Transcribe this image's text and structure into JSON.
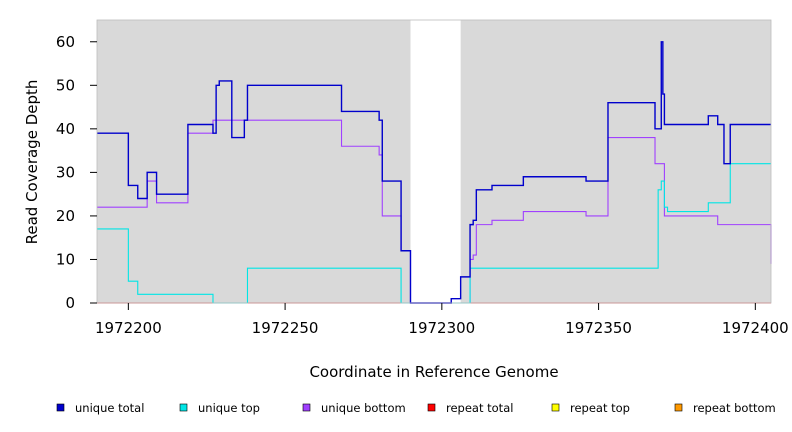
{
  "chart_data": {
    "type": "line",
    "line_shape": "step",
    "xlabel": "Coordinate in Reference Genome",
    "ylabel": "Read Coverage Depth",
    "xlim": [
      1972190,
      1972405
    ],
    "ylim": [
      0,
      65
    ],
    "x_ticks": [
      1972200,
      1972250,
      1972300,
      1972350,
      1972400
    ],
    "y_ticks": [
      0,
      10,
      20,
      30,
      40,
      50,
      60
    ],
    "plot_background": "#d9d9d9",
    "grid": false,
    "legend_position": "bottom",
    "highlight_region": {
      "x_start": 1972290,
      "x_end": 1972306,
      "color": "#ffffff"
    },
    "series": [
      {
        "name": "unique total",
        "color": "#0000cc",
        "x": [
          1972190,
          1972200,
          1972203,
          1972206,
          1972209,
          1972219,
          1972227,
          1972228,
          1972229,
          1972233,
          1972237,
          1972238,
          1972268,
          1972280,
          1972281,
          1972287,
          1972290,
          1972293,
          1972303,
          1972306,
          1972309,
          1972310,
          1972311,
          1972316,
          1972326,
          1972346,
          1972353,
          1972368,
          1972370,
          1972370.5,
          1972371,
          1972372,
          1972385,
          1972388,
          1972390,
          1972392,
          1972405
        ],
        "y": [
          39,
          27,
          24,
          30,
          25,
          41,
          39,
          50,
          51,
          38,
          42,
          50,
          44,
          42,
          28,
          12,
          0,
          0,
          1,
          6,
          18,
          19,
          26,
          27,
          29,
          28,
          46,
          40,
          60,
          48,
          41,
          41,
          43,
          41,
          32,
          41,
          41
        ]
      },
      {
        "name": "unique top",
        "color": "#00e5e5",
        "x": [
          1972190,
          1972200,
          1972203,
          1972227,
          1972238,
          1972287,
          1972309,
          1972369,
          1972370,
          1972371,
          1972372,
          1972385,
          1972392,
          1972405
        ],
        "y": [
          17,
          5,
          2,
          0,
          8,
          0,
          8,
          26,
          28,
          22,
          21,
          23,
          32,
          32
        ]
      },
      {
        "name": "unique bottom",
        "color": "#a040ff",
        "x": [
          1972190,
          1972206,
          1972209,
          1972219,
          1972227,
          1972238,
          1972268,
          1972280,
          1972281,
          1972287,
          1972290,
          1972306,
          1972309,
          1972310,
          1972311,
          1972316,
          1972326,
          1972346,
          1972353,
          1972368,
          1972371,
          1972385,
          1972388,
          1972405
        ],
        "y": [
          22,
          28,
          23,
          39,
          42,
          42,
          36,
          34,
          20,
          12,
          0,
          0,
          10,
          11,
          18,
          19,
          21,
          20,
          38,
          32,
          20,
          20,
          18,
          9
        ]
      },
      {
        "name": "repeat total",
        "color": "#ff0000",
        "x": [
          1972190,
          1972405
        ],
        "y": [
          0,
          0
        ]
      },
      {
        "name": "repeat top",
        "color": "#ffff00",
        "x": [
          1972190,
          1972405
        ],
        "y": [
          0,
          0
        ]
      },
      {
        "name": "repeat bottom",
        "color": "#ff9900",
        "x": [
          1972190,
          1972405
        ],
        "y": [
          0,
          0
        ]
      }
    ]
  }
}
